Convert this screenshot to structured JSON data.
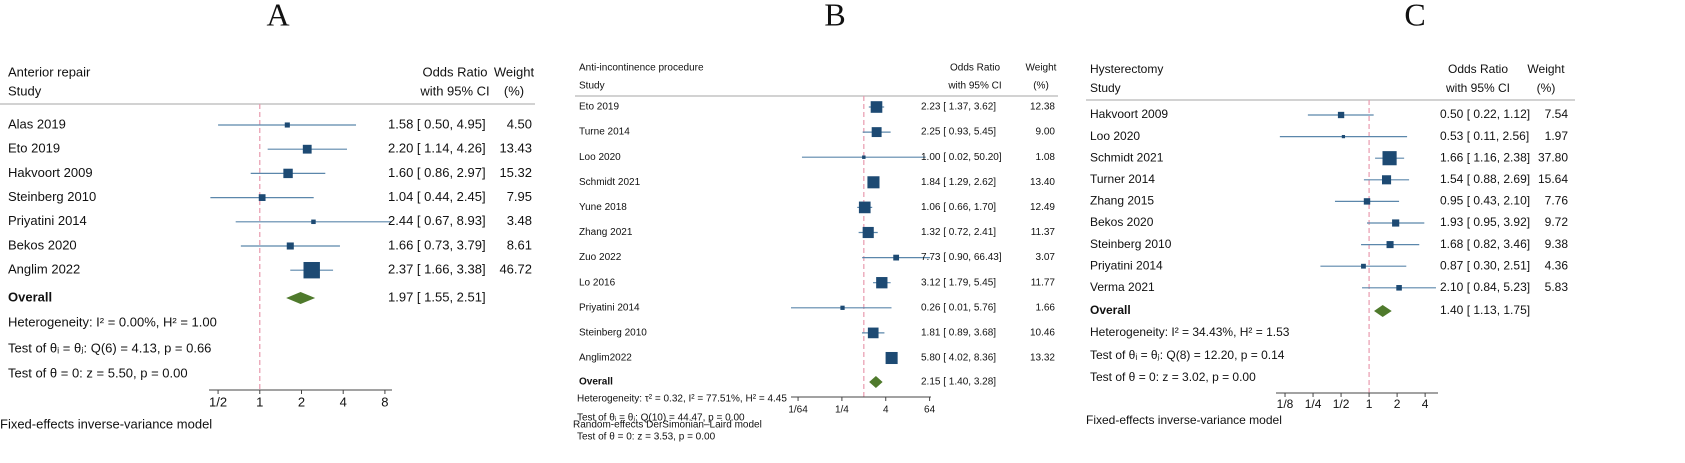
{
  "chart_data": [
    {
      "type": "forest",
      "label": "A",
      "title": "Anterior repair",
      "study_header": "Study",
      "estimate_header": [
        "Odds Ratio",
        "with 95% CI"
      ],
      "weight_header": [
        "Weight",
        "(%)"
      ],
      "categories": [
        "Alas 2019",
        "Eto 2019",
        "Hakvoort 2009",
        "Steinberg 2010",
        "Priyatini 2014",
        "Bekos 2020",
        "Anglim 2022"
      ],
      "values": [
        1.58,
        2.2,
        1.6,
        1.04,
        2.44,
        1.66,
        2.37
      ],
      "lower": [
        0.5,
        1.14,
        0.86,
        0.44,
        0.67,
        0.73,
        1.66
      ],
      "upper": [
        4.95,
        4.26,
        2.97,
        2.45,
        8.93,
        3.79,
        3.38
      ],
      "value_labels": [
        "1.58 [ 0.50, 4.95]",
        "2.20 [ 1.14, 4.26]",
        "1.60 [ 0.86, 2.97]",
        "1.04 [ 0.44, 2.45]",
        "2.44 [ 0.67, 8.93]",
        "1.66 [ 0.73, 3.79]",
        "2.37 [ 1.66, 3.38]"
      ],
      "weights": [
        4.5,
        13.43,
        15.32,
        7.95,
        3.48,
        8.61,
        46.72
      ],
      "weight_labels": [
        "4.50",
        "13.43",
        "15.32",
        "7.95",
        "3.48",
        "8.61",
        "46.72"
      ],
      "overall": {
        "name": "Overall",
        "value": 1.97,
        "lower": 1.55,
        "upper": 2.51,
        "label": "1.97 [ 1.55, 2.51]"
      },
      "stats": [
        "Heterogeneity: I² = 0.00%, H² = 1.00",
        "Test of θᵢ = θⱼ: Q(6) = 4.13, p = 0.66",
        "Test of θ = 0: z = 5.50, p = 0.00"
      ],
      "note": "Fixed-effects inverse-variance model",
      "log_scale": true,
      "xlim": [
        0.43,
        9
      ],
      "xticks": [
        {
          "value": 0.5,
          "label": "1/2"
        },
        1,
        2,
        4,
        8
      ],
      "null_line": 1,
      "marker_color": "#1d4a73",
      "ci_color": "#5b87ab",
      "diamond_color": "#4f7a2c",
      "null_line_color": "#e89aae"
    },
    {
      "type": "forest",
      "label": "B",
      "title": "Anti-incontinence procedure",
      "study_header": "Study",
      "estimate_header": [
        "Odds Ratio",
        "with 95% CI"
      ],
      "weight_header": [
        "Weight",
        "(%)"
      ],
      "categories": [
        "Eto 2019",
        "Turne 2014",
        "Loo 2020",
        "Schmidt 2021",
        "Yune 2018",
        "Zhang 2021",
        "Zuo 2022",
        "Lo 2016",
        "Priyatini 2014",
        "Steinberg 2010",
        "Anglim2022"
      ],
      "values": [
        2.23,
        2.25,
        1.0,
        1.84,
        1.06,
        1.32,
        7.73,
        3.12,
        0.26,
        1.81,
        5.8
      ],
      "lower": [
        1.37,
        0.93,
        0.02,
        1.29,
        0.66,
        0.72,
        0.9,
        1.79,
        0.01,
        0.89,
        4.02
      ],
      "upper": [
        3.62,
        5.45,
        50.2,
        2.62,
        1.7,
        2.41,
        66.43,
        5.45,
        5.76,
        3.68,
        8.36
      ],
      "value_labels": [
        "2.23 [ 1.37, 3.62]",
        "2.25 [ 0.93, 5.45]",
        "1.00 [ 0.02, 50.20]",
        "1.84 [ 1.29, 2.62]",
        "1.06 [ 0.66, 1.70]",
        "1.32 [ 0.72, 2.41]",
        "7.73 [ 0.90, 66.43]",
        "3.12 [ 1.79, 5.45]",
        "0.26 [ 0.01, 5.76]",
        "1.81 [ 0.89, 3.68]",
        "5.80 [ 4.02, 8.36]"
      ],
      "weights": [
        12.38,
        9.0,
        1.08,
        13.4,
        12.49,
        11.37,
        3.07,
        11.77,
        1.66,
        10.46,
        13.32
      ],
      "weight_labels": [
        "12.38",
        "9.00",
        "1.08",
        "13.40",
        "12.49",
        "11.37",
        "3.07",
        "11.77",
        "1.66",
        "10.46",
        "13.32"
      ],
      "overall": {
        "name": "Overall",
        "value": 2.15,
        "lower": 1.4,
        "upper": 3.28,
        "label": "2.15 [ 1.40, 3.28]"
      },
      "stats": [
        "Heterogeneity: τ² = 0.32, I² = 77.51%, H² = 4.45",
        "Test of θᵢ = θⱼ: Q(10) = 44.47, p = 0.00",
        "Test of θ = 0: z = 3.53, p = 0.00"
      ],
      "note": "Random-effects DerSimonian–Laird model",
      "log_scale": true,
      "xlim": [
        0.01,
        70
      ],
      "xticks": [
        {
          "value": 0.015625,
          "label": "1/64"
        },
        {
          "value": 0.25,
          "label": "1/4"
        },
        4,
        64
      ],
      "null_line": 1,
      "marker_color": "#1d4a73",
      "ci_color": "#5b87ab",
      "diamond_color": "#4f7a2c",
      "null_line_color": "#e89aae"
    },
    {
      "type": "forest",
      "label": "C",
      "title": "Hysterectomy",
      "study_header": "Study",
      "estimate_header": [
        "Odds Ratio",
        "with 95% CI"
      ],
      "weight_header": [
        "Weight",
        "(%)"
      ],
      "categories": [
        "Hakvoort 2009",
        "Loo 2020",
        "Schmidt 2021",
        "Turner 2014",
        "Zhang 2015",
        "Bekos 2020",
        "Steinberg 2010",
        "Priyatini 2014",
        "Verma 2021"
      ],
      "values": [
        0.5,
        0.53,
        1.66,
        1.54,
        0.95,
        1.93,
        1.68,
        0.87,
        2.1
      ],
      "lower": [
        0.22,
        0.11,
        1.16,
        0.88,
        0.43,
        0.95,
        0.82,
        0.3,
        0.84
      ],
      "upper": [
        1.12,
        2.56,
        2.38,
        2.69,
        2.1,
        3.92,
        3.46,
        2.51,
        5.23
      ],
      "value_labels": [
        "0.50 [ 0.22, 1.12]",
        "0.53 [ 0.11, 2.56]",
        "1.66 [ 1.16, 2.38]",
        "1.54 [ 0.88, 2.69]",
        "0.95 [ 0.43, 2.10]",
        "1.93 [ 0.95, 3.92]",
        "1.68 [ 0.82, 3.46]",
        "0.87 [ 0.30, 2.51]",
        "2.10 [ 0.84, 5.23]"
      ],
      "weights": [
        7.54,
        1.97,
        37.8,
        15.64,
        7.76,
        9.72,
        9.38,
        4.36,
        5.83
      ],
      "weight_labels": [
        "7.54",
        "1.97",
        "37.80",
        "15.64",
        "7.76",
        "9.72",
        "9.38",
        "4.36",
        "5.83"
      ],
      "overall": {
        "name": "Overall",
        "value": 1.4,
        "lower": 1.13,
        "upper": 1.75,
        "label": "1.40 [ 1.13, 1.75]"
      },
      "stats": [
        "Heterogeneity: I² = 34.43%, H² = 1.53",
        "Test of θᵢ = θⱼ: Q(8) = 12.20, p = 0.14",
        "Test of θ = 0: z = 3.02, p = 0.00"
      ],
      "note": "Fixed-effects inverse-variance model",
      "log_scale": true,
      "xlim": [
        0.1,
        5.5
      ],
      "xticks": [
        {
          "value": 0.125,
          "label": "1/8"
        },
        {
          "value": 0.25,
          "label": "1/4"
        },
        {
          "value": 0.5,
          "label": "1/2"
        },
        1,
        2,
        4
      ],
      "null_line": 1,
      "marker_color": "#1d4a73",
      "ci_color": "#5b87ab",
      "diamond_color": "#4f7a2c",
      "null_line_color": "#e89aae"
    }
  ]
}
